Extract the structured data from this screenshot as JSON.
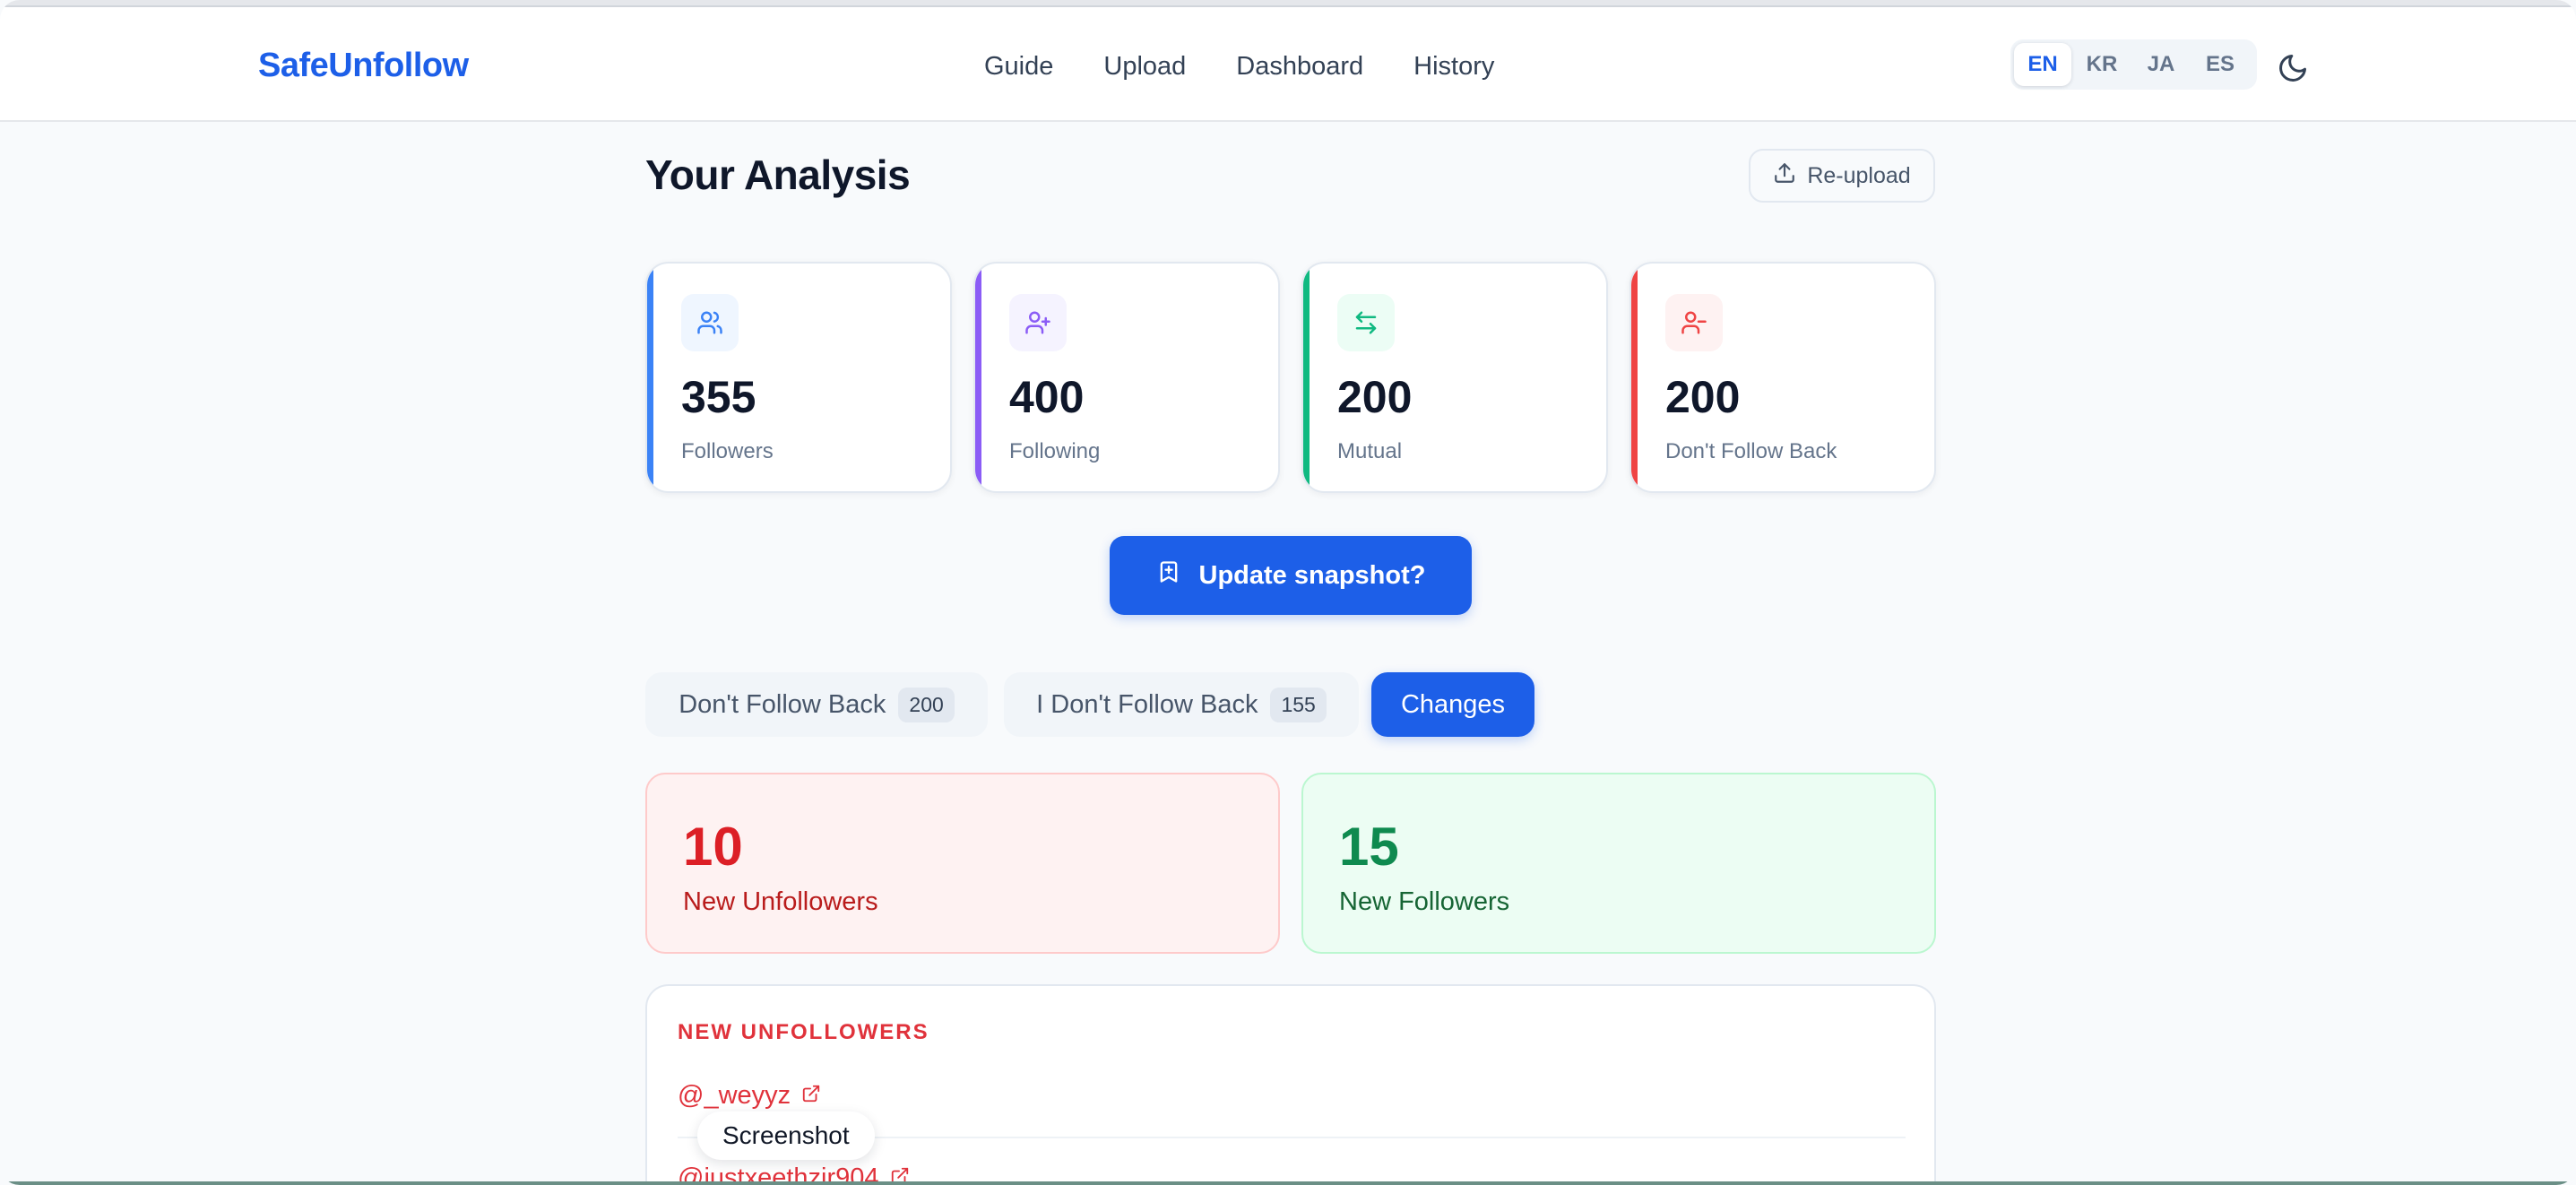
{
  "app": {
    "brand": "SafeUnfollow",
    "nav": [
      "Guide",
      "Upload",
      "Dashboard",
      "History"
    ],
    "languages": [
      "EN",
      "KR",
      "JA",
      "ES"
    ],
    "active_language": "EN",
    "theme_icon": "moon-icon"
  },
  "page": {
    "title": "Your Analysis",
    "reupload_label": "Re-upload"
  },
  "stats": [
    {
      "value": "355",
      "label": "Followers",
      "icon": "users-icon",
      "color": "#3b82f6"
    },
    {
      "value": "400",
      "label": "Following",
      "icon": "user-plus-icon",
      "color": "#8b5cf6"
    },
    {
      "value": "200",
      "label": "Mutual",
      "icon": "arrows-swap-icon",
      "color": "#10b981"
    },
    {
      "value": "200",
      "label": "Don't Follow Back",
      "icon": "user-minus-icon",
      "color": "#ef4444"
    }
  ],
  "update_button": "Update snapshot?",
  "tabs": [
    {
      "label": "Don't Follow Back",
      "count": "200"
    },
    {
      "label": "I Don't Follow Back",
      "count": "155"
    },
    {
      "label": "Changes",
      "count": null
    }
  ],
  "active_tab": "Changes",
  "changes": {
    "unfollowers": {
      "value": "10",
      "label": "New Unfollowers"
    },
    "followers": {
      "value": "15",
      "label": "New Followers"
    }
  },
  "list": {
    "heading": "NEW UNFOLLOWERS",
    "items": [
      "@_weyyz",
      "@justxeethzir904"
    ]
  },
  "tooltip": "Screenshot",
  "colors": {
    "accent": "#1d5fe8",
    "danger": "#dc1f26",
    "success": "#0f8a4f"
  }
}
